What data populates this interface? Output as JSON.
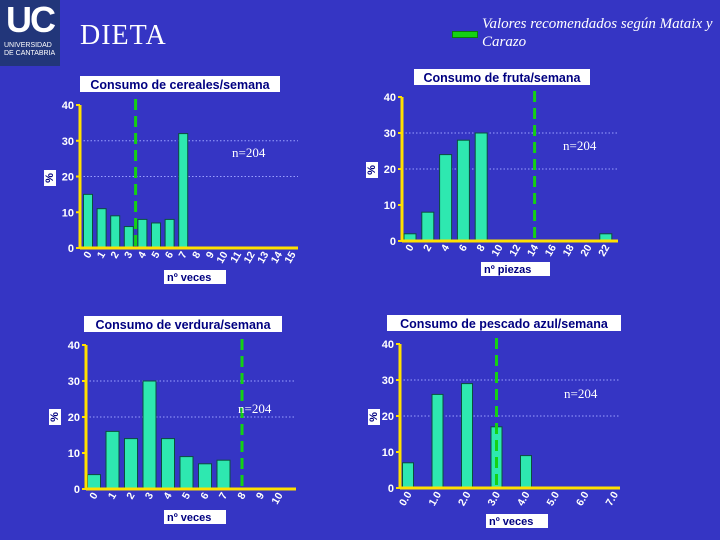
{
  "header": {
    "logo_mark": "UC",
    "logo_text": "UNIVERSIDAD DE CANTABRIA",
    "title": "DIETA",
    "legend_text": "Valores recomendados según Mataix y Carazo",
    "legend_color": "#14d114"
  },
  "colors": {
    "background": "#3535c4",
    "bar": "#2ee8b0",
    "axis": "#ffe000",
    "recommended_line": "#14d114",
    "title_box": "#ffffff",
    "title_text": "#000080"
  },
  "chart_data": [
    {
      "type": "bar",
      "title": "Consumo de cereales/semana",
      "xlabel": "nº veces",
      "ylabel": "%",
      "ylim": [
        0,
        40
      ],
      "yticks": [
        0,
        10,
        20,
        30,
        40
      ],
      "n_label": "n=204",
      "categories": [
        "0",
        "1",
        "2",
        "3",
        "4",
        "5",
        "6",
        "7",
        "8",
        "9",
        "10",
        "11",
        "12",
        "13",
        "14",
        "15"
      ],
      "values": [
        15,
        11,
        9,
        6,
        8,
        7,
        8,
        32,
        0,
        0,
        0,
        0,
        0,
        0,
        0,
        0
      ],
      "recommended_x": 3.5
    },
    {
      "type": "bar",
      "title": "Consumo de fruta/semana",
      "xlabel": "nº piezas",
      "ylabel": "%",
      "ylim": [
        0,
        40
      ],
      "yticks": [
        0,
        10,
        20,
        30,
        40
      ],
      "n_label": "n=204",
      "categories": [
        "0",
        "2",
        "4",
        "6",
        "8",
        "10",
        "12",
        "14",
        "16",
        "18",
        "20",
        "22"
      ],
      "values": [
        2,
        8,
        24,
        28,
        30,
        0,
        0,
        0,
        0,
        0,
        0,
        2
      ],
      "recommended_x": 7
    },
    {
      "type": "bar",
      "title": "Consumo de verdura/semana",
      "xlabel": "nº veces",
      "ylabel": "%",
      "ylim": [
        0,
        40
      ],
      "yticks": [
        0,
        10,
        20,
        30,
        40
      ],
      "n_label": "n=204",
      "categories": [
        "0",
        "1",
        "2",
        "3",
        "4",
        "5",
        "6",
        "7",
        "8",
        "9",
        "10"
      ],
      "values": [
        4,
        16,
        14,
        30,
        14,
        9,
        7,
        8,
        0,
        0,
        0
      ],
      "recommended_x": 8
    },
    {
      "type": "bar",
      "title": "Consumo de pescado azul/semana",
      "xlabel": "nº veces",
      "ylabel": "%",
      "ylim": [
        0,
        40
      ],
      "yticks": [
        0,
        10,
        20,
        30,
        40
      ],
      "n_label": "n=204",
      "categories": [
        "0.0",
        "1.0",
        "2.0",
        "3.0",
        "4.0",
        "5.0",
        "6.0",
        "7.0"
      ],
      "values": [
        7,
        26,
        29,
        17,
        9,
        0,
        0,
        0
      ],
      "recommended_x": 3
    }
  ]
}
